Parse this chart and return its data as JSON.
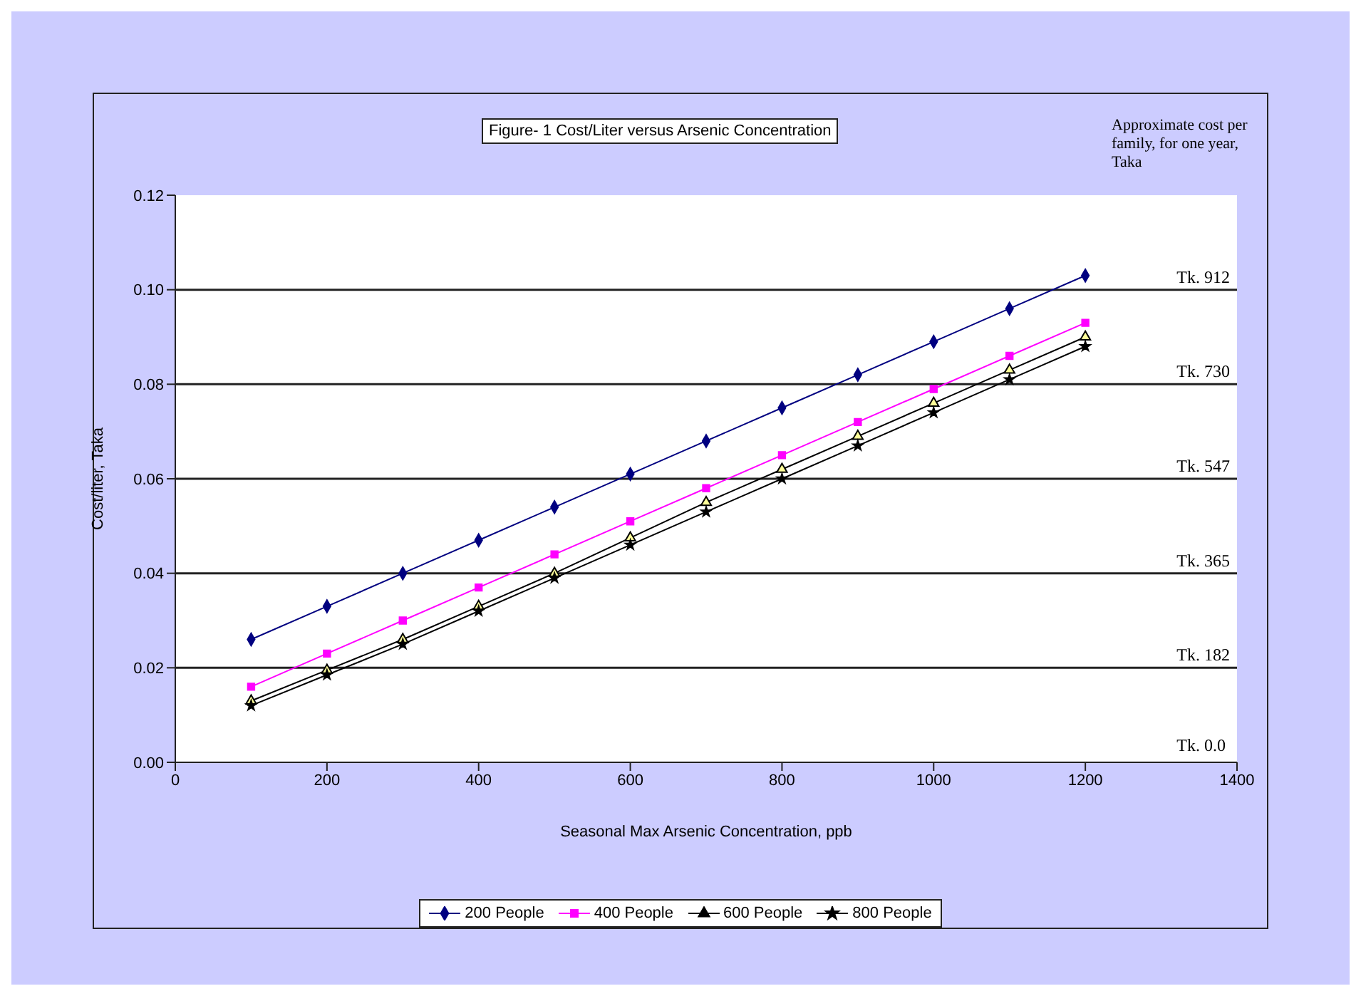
{
  "chart_data": {
    "type": "line",
    "title": "Figure- 1 Cost/Liter versus Arsenic Concentration",
    "xlabel": "Seasonal Max Arsenic Concentration, ppb",
    "ylabel": "Cost/liter, Taka",
    "x": [
      100,
      200,
      300,
      400,
      500,
      600,
      700,
      800,
      900,
      1000,
      1100,
      1200
    ],
    "series": [
      {
        "name": "200 People",
        "color": "#000080",
        "marker": "diamond",
        "values": [
          0.026,
          0.033,
          0.04,
          0.047,
          0.054,
          0.061,
          0.068,
          0.075,
          0.082,
          0.089,
          0.096,
          0.103
        ]
      },
      {
        "name": "400 People",
        "color": "#ff00ff",
        "marker": "square",
        "values": [
          0.016,
          0.023,
          0.03,
          0.037,
          0.044,
          0.051,
          0.058,
          0.065,
          0.072,
          0.079,
          0.086,
          0.093
        ]
      },
      {
        "name": "600 People",
        "color": "#000000",
        "marker": "triangle",
        "values": [
          0.013,
          0.0195,
          0.026,
          0.033,
          0.04,
          0.0475,
          0.055,
          0.062,
          0.069,
          0.076,
          0.083,
          0.09
        ]
      },
      {
        "name": "800 People",
        "color": "#000000",
        "marker": "star",
        "values": [
          0.012,
          0.0185,
          0.025,
          0.032,
          0.039,
          0.046,
          0.053,
          0.06,
          0.067,
          0.074,
          0.081,
          0.088
        ]
      }
    ],
    "xlim": [
      0,
      1400
    ],
    "xticks": [
      0,
      200,
      400,
      600,
      800,
      1000,
      1200,
      1400
    ],
    "ylim": [
      0,
      0.12
    ],
    "yticks": [
      {
        "value": 0,
        "label": "0.00"
      },
      0.02,
      0.04,
      0.06,
      0.08,
      {
        "value": 0.1,
        "label": "0.10"
      },
      0.12
    ],
    "ref_lines": [
      {
        "axis": "y",
        "value": 0.02,
        "label": "Tk. 182"
      },
      {
        "axis": "y",
        "value": 0.04,
        "label": "Tk. 365"
      },
      {
        "axis": "y",
        "value": 0.06,
        "label": "Tk. 547"
      },
      {
        "axis": "y",
        "value": 0.08,
        "label": "Tk. 730"
      },
      {
        "axis": "y",
        "value": 0.1,
        "label": "Tk. 912"
      }
    ],
    "annotations": [
      "Approximate cost per family, for one year, Taka",
      "Tk. 0.0"
    ],
    "grid": false,
    "legend": "bottom",
    "line_style": "solid"
  }
}
